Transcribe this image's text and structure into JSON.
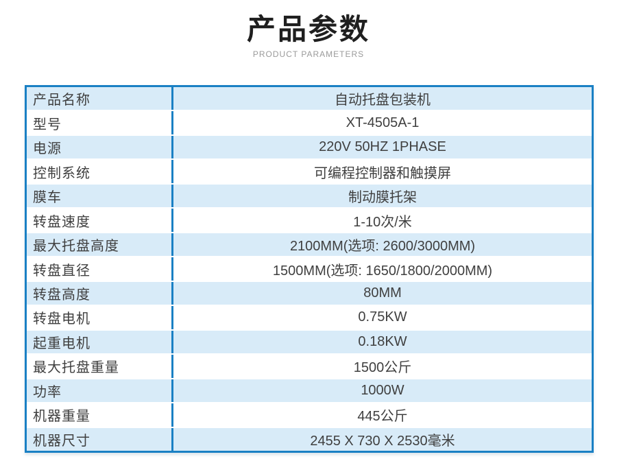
{
  "header": {
    "title": "产品参数",
    "subtitle": "PRODUCT PARAMETERS"
  },
  "colors": {
    "border_blue": "#1a80c4",
    "row_alt_blue": "#d8ebf8",
    "row_white": "#ffffff",
    "text_dark": "#3f3f3f",
    "title_black": "#1f1f1f",
    "subtitle_gray": "#9a9a9a"
  },
  "table": {
    "rows": [
      {
        "label": "产品名称",
        "value": "自动托盘包装机"
      },
      {
        "label": "型号",
        "value": "XT-4505A-1"
      },
      {
        "label": "电源",
        "value": "220V 50HZ 1PHASE"
      },
      {
        "label": "控制系统",
        "value": "可编程控制器和触摸屏"
      },
      {
        "label": "膜车",
        "value": "制动膜托架"
      },
      {
        "label": "转盘速度",
        "value": "1-10次/米"
      },
      {
        "label": "最大托盘高度",
        "value": "2100MM(选项: 2600/3000MM)"
      },
      {
        "label": "转盘直径",
        "value": "1500MM(选项: 1650/1800/2000MM)"
      },
      {
        "label": "转盘高度",
        "value": "80MM"
      },
      {
        "label": "转盘电机",
        "value": "0.75KW"
      },
      {
        "label": "起重电机",
        "value": "0.18KW"
      },
      {
        "label": "最大托盘重量",
        "value": "1500公斤"
      },
      {
        "label": "功率",
        "value": "1000W"
      },
      {
        "label": "机器重量",
        "value": "445公斤"
      },
      {
        "label": "机器尺寸",
        "value": "2455 X 730 X 2530毫米"
      }
    ]
  }
}
